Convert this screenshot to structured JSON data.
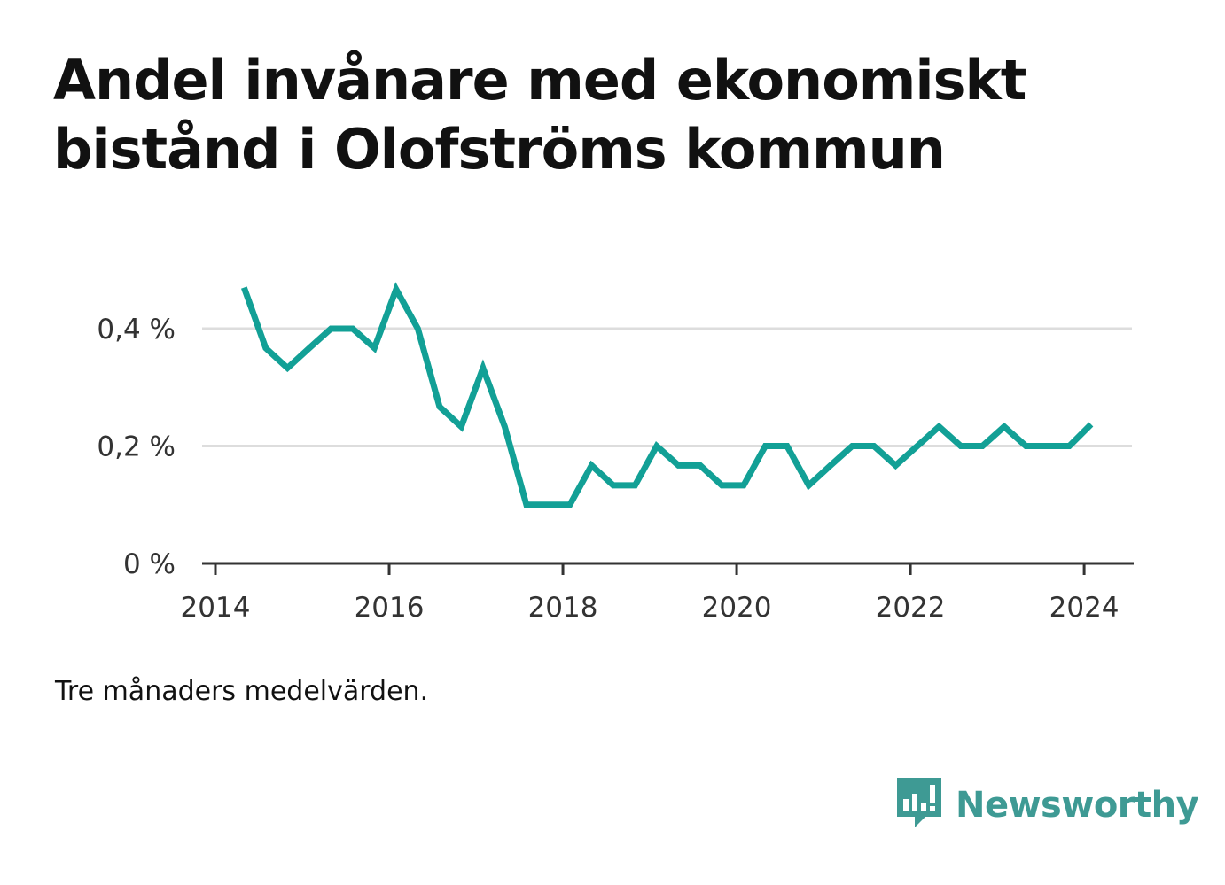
{
  "title": "Andel invånare med ekonomiskt bistånd i Olofströms kommun",
  "note": "Tre månaders medelvärden.",
  "brand": {
    "name": "Newsworthy",
    "color": "#3e9a94",
    "icon": "chart-speech-bubble-icon"
  },
  "colors": {
    "line": "#12a096",
    "grid": "#dddddd",
    "axis": "#333333"
  },
  "chart_data": {
    "type": "line",
    "title": "Andel invånare med ekonomiskt bistånd i Olofströms kommun",
    "xlabel": "",
    "ylabel": "",
    "xlim": [
      2014,
      2024.55
    ],
    "ylim": [
      0,
      0.4
    ],
    "grid": true,
    "x_ticks": [
      2014,
      2016,
      2018,
      2020,
      2022,
      2024
    ],
    "x_tick_labels": [
      "2014",
      "2016",
      "2018",
      "2020",
      "2022",
      "2024"
    ],
    "y_ticks": [
      0,
      0.2,
      0.4
    ],
    "y_tick_labels": [
      "0 %",
      "0,2 %",
      "0,4 %"
    ],
    "series": [
      {
        "x": [
          2014.33,
          2014.58,
          2014.83,
          2015.08,
          2015.33,
          2015.58,
          2015.83,
          2016.08,
          2016.33,
          2016.58,
          2016.83,
          2017.08,
          2017.33,
          2017.58,
          2017.83,
          2018.08,
          2018.33,
          2018.58,
          2018.83,
          2019.08,
          2019.33,
          2019.58,
          2019.83,
          2020.08,
          2020.33,
          2020.58,
          2020.83,
          2021.08,
          2021.33,
          2021.58,
          2021.83,
          2022.08,
          2022.33,
          2022.58,
          2022.83,
          2023.08,
          2023.33,
          2023.58,
          2023.83,
          2024.08
        ],
        "values": [
          0.47,
          0.367,
          0.333,
          0.367,
          0.4,
          0.4,
          0.367,
          0.467,
          0.4,
          0.267,
          0.233,
          0.333,
          0.233,
          0.1,
          0.1,
          0.1,
          0.167,
          0.133,
          0.133,
          0.2,
          0.167,
          0.167,
          0.133,
          0.133,
          0.2,
          0.2,
          0.133,
          0.167,
          0.2,
          0.2,
          0.167,
          0.2,
          0.233,
          0.2,
          0.2,
          0.233,
          0.2,
          0.2,
          0.2,
          0.237
        ]
      }
    ]
  }
}
